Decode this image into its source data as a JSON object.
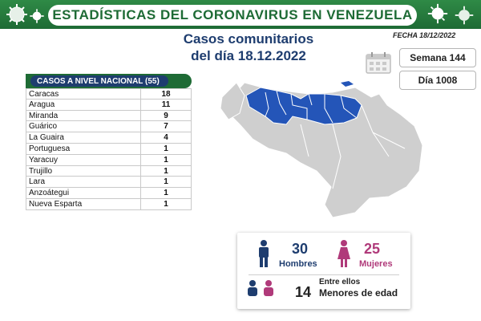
{
  "header": {
    "title": "ESTADÍSTICAS DEL CORONAVIRUS EN VENEZUELA"
  },
  "subtitle": {
    "line1": "Casos comunitarios",
    "line2": "del día 18.12.2022"
  },
  "fecha": "FECHA 18/12/2022",
  "pills": {
    "semana": "Semana 144",
    "dia": "Día 1008"
  },
  "table": {
    "header": "CASOS A NIVEL NACIONAL (55)",
    "rows": [
      {
        "state": "Caracas",
        "cases": "18"
      },
      {
        "state": "Aragua",
        "cases": "11"
      },
      {
        "state": "Miranda",
        "cases": "9"
      },
      {
        "state": "Guárico",
        "cases": "7"
      },
      {
        "state": "La Guaira",
        "cases": "4"
      },
      {
        "state": "Portuguesa",
        "cases": "1"
      },
      {
        "state": "Yaracuy",
        "cases": "1"
      },
      {
        "state": "Trujillo",
        "cases": "1"
      },
      {
        "state": "Lara",
        "cases": "1"
      },
      {
        "state": "Anzoátegui",
        "cases": "1"
      },
      {
        "state": "Nueva Esparta",
        "cases": "1"
      }
    ]
  },
  "gender": {
    "hombres_count": "30",
    "hombres_label": "Hombres",
    "mujeres_count": "25",
    "mujeres_label": "Mujeres"
  },
  "menores": {
    "prefix": "Entre ellos",
    "count": "14",
    "label": "Menores de edad"
  },
  "colors": {
    "header_green": "#1e6b35",
    "navy": "#1e3d6f",
    "map_highlight": "#2455b8",
    "map_base": "#cfcfcf",
    "hombres": "#1e3d6f",
    "mujeres": "#b03a7a"
  },
  "icons": {
    "decor": "virus-icon",
    "calendar": "calendar-icon",
    "man": "man-icon",
    "woman": "woman-icon",
    "children": "children-icon"
  }
}
